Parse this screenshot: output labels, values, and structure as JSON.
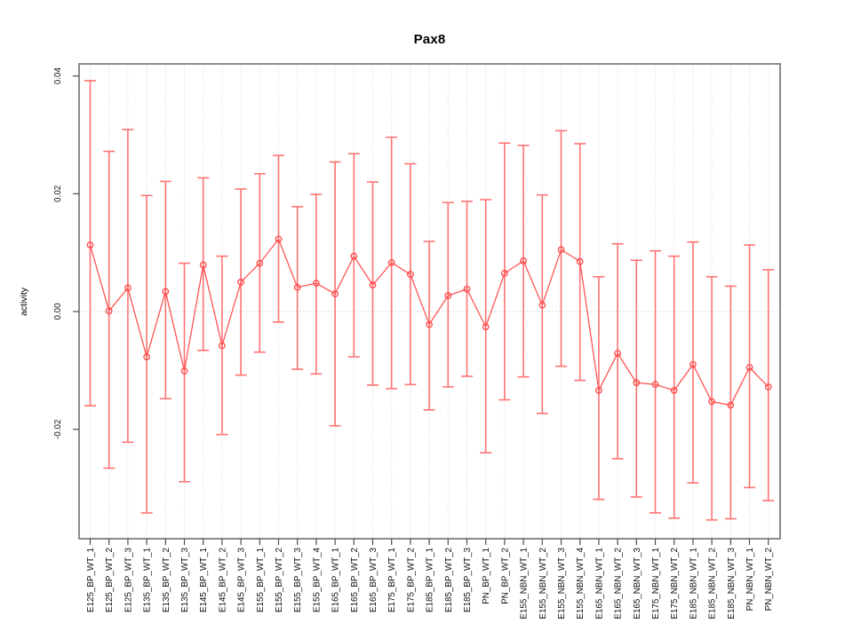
{
  "chart_data": {
    "type": "line",
    "title": "Pax8",
    "xlabel": "",
    "ylabel": "activity",
    "ylim": [
      -0.0386,
      0.042
    ],
    "grid": "vertical dotted gridline per category; dotted horizontal line at y=0",
    "legend_position": "none",
    "marker": "open-circle with error bars, points connected by line",
    "yticks": [
      {
        "value": -0.02,
        "label": "-0.02"
      },
      {
        "value": 0.0,
        "label": "0.00"
      },
      {
        "value": 0.02,
        "label": "0.02"
      },
      {
        "value": 0.04,
        "label": "0.04"
      }
    ],
    "points": [
      {
        "label": "E125_BP_WT_1",
        "y": 0.0113,
        "lo": -0.016,
        "hi": 0.0392
      },
      {
        "label": "E125_BP_WT_2",
        "y": 0.0001,
        "lo": -0.0266,
        "hi": 0.0272
      },
      {
        "label": "E125_BP_WT_3",
        "y": 0.004,
        "lo": -0.0222,
        "hi": 0.0309
      },
      {
        "label": "E135_BP_WT_1",
        "y": -0.0077,
        "lo": -0.0342,
        "hi": 0.0197
      },
      {
        "label": "E135_BP_WT_2",
        "y": 0.0034,
        "lo": -0.0148,
        "hi": 0.0221
      },
      {
        "label": "E135_BP_WT_3",
        "y": -0.0101,
        "lo": -0.0289,
        "hi": 0.0082
      },
      {
        "label": "E145_BP_WT_1",
        "y": 0.0079,
        "lo": -0.0066,
        "hi": 0.0227
      },
      {
        "label": "E145_BP_WT_2",
        "y": -0.0058,
        "lo": -0.0209,
        "hi": 0.0094
      },
      {
        "label": "E145_BP_WT_3",
        "y": 0.005,
        "lo": -0.0108,
        "hi": 0.0208
      },
      {
        "label": "E155_BP_WT_1",
        "y": 0.0082,
        "lo": -0.0069,
        "hi": 0.0234
      },
      {
        "label": "E155_BP_WT_2",
        "y": 0.0123,
        "lo": -0.0018,
        "hi": 0.0265
      },
      {
        "label": "E155_BP_WT_3",
        "y": 0.0041,
        "lo": -0.0098,
        "hi": 0.0178
      },
      {
        "label": "E155_BP_WT_4",
        "y": 0.0048,
        "lo": -0.0106,
        "hi": 0.0199
      },
      {
        "label": "E165_BP_WT_1",
        "y": 0.003,
        "lo": -0.0194,
        "hi": 0.0254
      },
      {
        "label": "E165_BP_WT_2",
        "y": 0.0094,
        "lo": -0.0077,
        "hi": 0.0268
      },
      {
        "label": "E165_BP_WT_3",
        "y": 0.0045,
        "lo": -0.0125,
        "hi": 0.022
      },
      {
        "label": "E175_BP_WT_1",
        "y": 0.0083,
        "lo": -0.0131,
        "hi": 0.0296
      },
      {
        "label": "E175_BP_WT_2",
        "y": 0.0063,
        "lo": -0.0124,
        "hi": 0.0251
      },
      {
        "label": "E185_BP_WT_1",
        "y": -0.0022,
        "lo": -0.0167,
        "hi": 0.0119
      },
      {
        "label": "E185_BP_WT_2",
        "y": 0.0027,
        "lo": -0.0128,
        "hi": 0.0185
      },
      {
        "label": "E185_BP_WT_3",
        "y": 0.0038,
        "lo": -0.011,
        "hi": 0.0187
      },
      {
        "label": "PN_BP_WT_1",
        "y": -0.0026,
        "lo": -0.024,
        "hi": 0.019
      },
      {
        "label": "PN_BP_WT_2",
        "y": 0.0065,
        "lo": -0.015,
        "hi": 0.0286
      },
      {
        "label": "E155_NBN_WT_1",
        "y": 0.0086,
        "lo": -0.0111,
        "hi": 0.0282
      },
      {
        "label": "E155_NBN_WT_2",
        "y": 0.0011,
        "lo": -0.0173,
        "hi": 0.0198
      },
      {
        "label": "E155_NBN_WT_3",
        "y": 0.0105,
        "lo": -0.0093,
        "hi": 0.0307
      },
      {
        "label": "E155_NBN_WT_4",
        "y": 0.0085,
        "lo": -0.0117,
        "hi": 0.0285
      },
      {
        "label": "E165_NBN_WT_1",
        "y": -0.0134,
        "lo": -0.0319,
        "hi": 0.0059
      },
      {
        "label": "E165_NBN_WT_2",
        "y": -0.0071,
        "lo": -0.025,
        "hi": 0.0115
      },
      {
        "label": "E165_NBN_WT_3",
        "y": -0.0121,
        "lo": -0.0315,
        "hi": 0.0087
      },
      {
        "label": "E175_NBN_WT_1",
        "y": -0.0124,
        "lo": -0.0342,
        "hi": 0.0103
      },
      {
        "label": "E175_NBN_WT_2",
        "y": -0.0134,
        "lo": -0.0351,
        "hi": 0.0094
      },
      {
        "label": "E185_NBN_WT_1",
        "y": -0.009,
        "lo": -0.0291,
        "hi": 0.0118
      },
      {
        "label": "E185_NBN_WT_2",
        "y": -0.0153,
        "lo": -0.0354,
        "hi": 0.0059
      },
      {
        "label": "E185_NBN_WT_3",
        "y": -0.0159,
        "lo": -0.0352,
        "hi": 0.0043
      },
      {
        "label": "PN_NBN_WT_1",
        "y": -0.0095,
        "lo": -0.0299,
        "hi": 0.0113
      },
      {
        "label": "PN_NBN_WT_2",
        "y": -0.0128,
        "lo": -0.0321,
        "hi": 0.0071
      }
    ]
  },
  "colors": {
    "error_bar": "#ff7373",
    "point_outline": "#ff4f4f",
    "connect_line": "#ff5454",
    "gridline": "#dedede",
    "zero_line": "#cccccc",
    "box": "#8c8c8c",
    "tick": "#4d4d4d",
    "text": "#111111"
  }
}
